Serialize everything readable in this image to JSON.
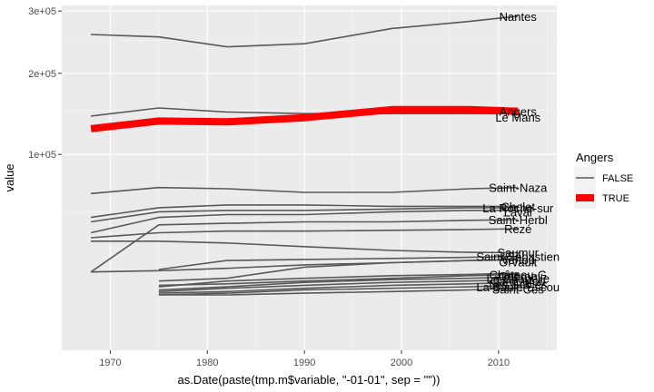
{
  "chart_data": {
    "type": "line",
    "xlabel": "as.Date(paste(tmp.m$variable, \"-01-01\", sep = \"\"))",
    "ylabel": "value",
    "x_scale": "date",
    "y_scale": "sqrt",
    "ylim": [
      0,
      310000
    ],
    "xlim": [
      "1965-01-01",
      "2016-01-01"
    ],
    "x_ticks": [
      {
        "value": "1970-01-01",
        "label": "1970"
      },
      {
        "value": "1980-01-01",
        "label": "1980"
      },
      {
        "value": "1990-01-01",
        "label": "1990"
      },
      {
        "value": "2000-01-01",
        "label": "2000"
      },
      {
        "value": "2010-01-01",
        "label": "2010"
      }
    ],
    "y_ticks": [
      {
        "value": 100000,
        "label": "1e+05"
      },
      {
        "value": 200000,
        "label": "2e+05"
      },
      {
        "value": 300000,
        "label": "3e+05"
      }
    ],
    "grid": true,
    "legend": {
      "title": "Angers",
      "position": "right",
      "entries": [
        {
          "label": "FALSE",
          "color": "#595959"
        },
        {
          "label": "TRUE",
          "color": "#ff0000"
        }
      ]
    },
    "colors": {
      "FALSE": "#595959",
      "TRUE": "#ff0000",
      "panel": "#ebebeb",
      "grid": "#ffffff"
    },
    "series": [
      {
        "name": "Nantes",
        "group": "FALSE",
        "x": [
          "1968-01-01",
          "1975-01-01",
          "1982-01-01",
          "1990-01-01",
          "1999-01-01",
          "2007-01-01",
          "2012-01-01"
        ],
        "y": [
          260000,
          256000,
          240000,
          245000,
          270000,
          282000,
          291000
        ]
      },
      {
        "name": "Angers",
        "group": "TRUE",
        "x": [
          "1968-01-01",
          "1975-01-01",
          "1982-01-01",
          "1990-01-01",
          "1999-01-01",
          "2007-01-01",
          "2012-01-01"
        ],
        "y": [
          128000,
          137000,
          136000,
          141000,
          151000,
          151000,
          149000
        ]
      },
      {
        "name": "Le Mans",
        "group": "FALSE",
        "x": [
          "1968-01-01",
          "1975-01-01",
          "1982-01-01",
          "1990-01-01",
          "1999-01-01",
          "2007-01-01",
          "2012-01-01"
        ],
        "y": [
          143000,
          153000,
          148000,
          146000,
          146000,
          146000,
          146000
        ]
      },
      {
        "name": "Saint-Nazaire",
        "group": "FALSE",
        "x": [
          "1968-01-01",
          "1975-01-01",
          "1982-01-01",
          "1990-01-01",
          "1999-01-01",
          "2007-01-01",
          "2012-01-01"
        ],
        "y": [
          64000,
          69000,
          68000,
          65000,
          65000,
          68000,
          69000
        ]
      },
      {
        "name": "Cholet",
        "group": "FALSE",
        "x": [
          "1968-01-01",
          "1975-01-01",
          "1982-01-01",
          "1990-01-01",
          "1999-01-01",
          "2007-01-01",
          "2012-01-01"
        ],
        "y": [
          46000,
          53000,
          55000,
          55000,
          54000,
          54000,
          54000
        ]
      },
      {
        "name": "La Roche-sur-Yon",
        "group": "FALSE",
        "x": [
          "1968-01-01",
          "1975-01-01",
          "1982-01-01",
          "1990-01-01",
          "1999-01-01",
          "2007-01-01",
          "2012-01-01"
        ],
        "y": [
          43000,
          50000,
          51000,
          51000,
          52000,
          53000,
          53000
        ]
      },
      {
        "name": "Laval",
        "group": "FALSE",
        "x": [
          "1968-01-01",
          "1975-01-01",
          "1982-01-01",
          "1990-01-01",
          "1999-01-01",
          "2007-01-01",
          "2012-01-01"
        ],
        "y": [
          36000,
          46000,
          48000,
          48000,
          50000,
          51000,
          51000
        ]
      },
      {
        "name": "Saint-Herblain",
        "group": "FALSE",
        "x": [
          "1968-01-01",
          "1975-01-01",
          "1982-01-01",
          "1990-01-01",
          "1999-01-01",
          "2007-01-01",
          "2012-01-01"
        ],
        "y": [
          16000,
          41000,
          42000,
          43000,
          43000,
          44000,
          44500
        ]
      },
      {
        "name": "Rezé",
        "group": "FALSE",
        "x": [
          "1968-01-01",
          "1975-01-01",
          "1982-01-01",
          "1990-01-01",
          "1999-01-01",
          "2007-01-01",
          "2012-01-01"
        ],
        "y": [
          33000,
          36000,
          37000,
          37000,
          37500,
          38000,
          38500
        ]
      },
      {
        "name": "Saumur",
        "group": "FALSE",
        "x": [
          "1968-01-01",
          "1975-01-01",
          "1982-01-01",
          "1990-01-01",
          "1999-01-01",
          "2007-01-01",
          "2012-01-01"
        ],
        "y": [
          31000,
          31000,
          30000,
          28000,
          26000,
          25000,
          24800
        ]
      },
      {
        "name": "Saint-Sébastien-sur-Loire",
        "group": "FALSE",
        "x": [
          "1975-01-01",
          "1982-01-01",
          "1990-01-01",
          "1999-01-01",
          "2007-01-01",
          "2012-01-01"
        ],
        "y": [
          17000,
          21000,
          21500,
          22000,
          22500,
          23000
        ]
      },
      {
        "name": "Orvault",
        "group": "FALSE",
        "x": [
          "1975-01-01",
          "1982-01-01",
          "1990-01-01",
          "1999-01-01",
          "2007-01-01",
          "2012-01-01"
        ],
        "y": [
          12500,
          13500,
          18000,
          20000,
          21000,
          21500
        ]
      },
      {
        "name": "Vertou",
        "group": "FALSE",
        "x": [
          "1968-01-01",
          "1975-01-01",
          "1982-01-01",
          "1990-01-01",
          "1999-01-01",
          "2007-01-01",
          "2012-01-01"
        ],
        "y": [
          16000,
          16500,
          17500,
          19000,
          20000,
          21000,
          21500
        ]
      },
      {
        "name": "Château-Gontier",
        "group": "FALSE",
        "x": [
          "1975-01-01",
          "1982-01-01",
          "1990-01-01",
          "1999-01-01",
          "2007-01-01",
          "2012-01-01"
        ],
        "y": [
          11000,
          11500,
          12500,
          13500,
          14500,
          15000
        ]
      },
      {
        "name": "Coëron",
        "group": "FALSE",
        "x": [
          "1975-01-01",
          "1982-01-01",
          "1990-01-01",
          "1999-01-01",
          "2007-01-01",
          "2012-01-01"
        ],
        "y": [
          10500,
          12500,
          13500,
          14500,
          15000,
          15500
        ]
      },
      {
        "name": "La Chapelle-sur-Erdre",
        "group": "FALSE",
        "x": [
          "1975-01-01",
          "1982-01-01",
          "1990-01-01",
          "1999-01-01",
          "2007-01-01",
          "2012-01-01"
        ],
        "y": [
          9500,
          10500,
          12000,
          13000,
          13500,
          14000
        ]
      },
      {
        "name": "Carquefou",
        "group": "FALSE",
        "x": [
          "1975-01-01",
          "1982-01-01",
          "1990-01-01",
          "1999-01-01",
          "2007-01-01",
          "2012-01-01"
        ],
        "y": [
          9000,
          10000,
          11000,
          12000,
          12500,
          13000
        ]
      },
      {
        "name": "Les Sables-d'Olonne",
        "group": "FALSE",
        "x": [
          "1975-01-01",
          "1982-01-01",
          "1990-01-01",
          "1999-01-01",
          "2007-01-01",
          "2012-01-01"
        ],
        "y": [
          8500,
          9000,
          10000,
          11000,
          11500,
          12000
        ]
      },
      {
        "name": "La Baule-Escoublac",
        "group": "FALSE",
        "x": [
          "1975-01-01",
          "1982-01-01",
          "1990-01-01",
          "1999-01-01",
          "2007-01-01",
          "2012-01-01"
        ],
        "y": [
          8000,
          8500,
          9500,
          10000,
          10500,
          11000
        ]
      },
      {
        "name": "Saint-Nazaire-bis",
        "group": "FALSE",
        "x": [
          "1975-01-01",
          "1982-01-01",
          "1990-01-01",
          "1999-01-01",
          "2007-01-01",
          "2012-01-01"
        ],
        "y": [
          8000,
          8000,
          8500,
          9000,
          9500,
          10000
        ]
      }
    ],
    "labels": [
      {
        "text": "Nantes",
        "x": "2012-01-01",
        "y": 291000
      },
      {
        "text": "Angers",
        "x": "2012-01-01",
        "y": 149000
      },
      {
        "text": "Le Mans",
        "x": "2012-01-01",
        "y": 142000
      },
      {
        "text": "Saint-Naza",
        "x": "2012-01-01",
        "y": 69000
      },
      {
        "text": "Cholet",
        "x": "2012-01-01",
        "y": 54000
      },
      {
        "text": "La Roche-sur",
        "x": "2012-01-01",
        "y": 53000
      },
      {
        "text": "Laval",
        "x": "2012-01-01",
        "y": 50000
      },
      {
        "text": "Saint-Herbl",
        "x": "2012-01-01",
        "y": 44500
      },
      {
        "text": "Rezé",
        "x": "2012-01-01",
        "y": 38500
      },
      {
        "text": "Saumur",
        "x": "2012-01-01",
        "y": 25000
      },
      {
        "text": "Saint-Sébastien",
        "x": "2012-01-01",
        "y": 23000
      },
      {
        "text": "Vertou",
        "x": "2012-01-01",
        "y": 21500
      },
      {
        "text": "Orvault",
        "x": "2012-01-01",
        "y": 20500
      },
      {
        "text": "Château-G",
        "x": "2012-01-01",
        "y": 15000
      },
      {
        "text": "Coëron",
        "x": "2012-01-01",
        "y": 14500
      },
      {
        "text": "La Chapelle",
        "x": "2012-01-01",
        "y": 13500
      },
      {
        "text": "Carquefou",
        "x": "2012-01-01",
        "y": 12500
      },
      {
        "text": "Les Sables",
        "x": "2012-01-01",
        "y": 11500
      },
      {
        "text": "La Baule-Escou",
        "x": "2012-01-01",
        "y": 10500
      },
      {
        "text": "Saint-Ces",
        "x": "2012-01-01",
        "y": 9800
      }
    ]
  }
}
